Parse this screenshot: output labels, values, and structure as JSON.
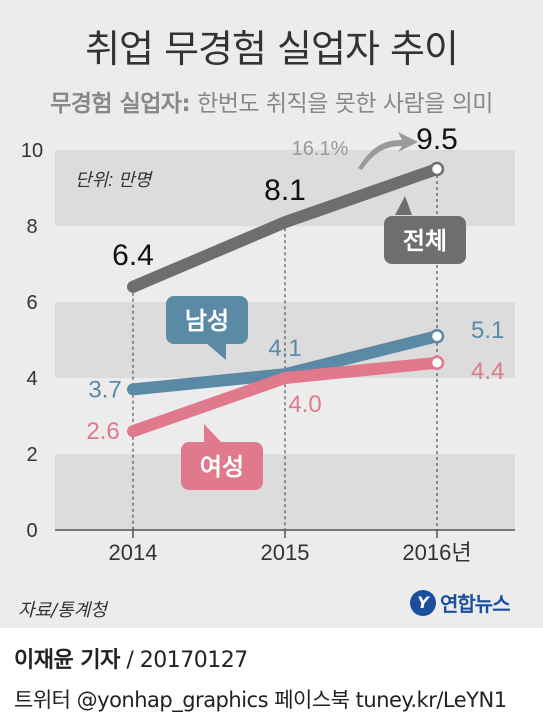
{
  "header": {
    "title": "취업 무경험 실업자 추이",
    "subtitle_bold": "무경험 실업자:",
    "subtitle_rest": " 한번도 취직을 못한 사람을 의미"
  },
  "footer": {
    "source": "자료/통계청",
    "logo": "연합뉴스",
    "logo_mark": "Y",
    "reporter": "이재윤 기자",
    "date": " / 20170127",
    "social": "트위터 @yonhap_graphics  페이스북 tuney.kr/LeYN1"
  },
  "colors": {
    "total": "#6e6e6e",
    "male": "#5a8aa6",
    "female": "#e0798c",
    "panel": "#ececec",
    "band": "#dcdcdc"
  },
  "chart_data": {
    "type": "line",
    "categories": [
      "2014",
      "2015",
      "2016년"
    ],
    "ylim": [
      0,
      10
    ],
    "yticks": [
      "0",
      "2",
      "4",
      "6",
      "8",
      "10"
    ],
    "unit_label": "단위: 만명",
    "series": [
      {
        "name": "전체",
        "values": [
          6.4,
          8.1,
          9.5
        ],
        "labels": [
          "6.4",
          "8.1",
          "9.5"
        ]
      },
      {
        "name": "남성",
        "values": [
          3.7,
          4.1,
          5.1
        ],
        "labels": [
          "3.7",
          "4.1",
          "5.1"
        ]
      },
      {
        "name": "여성",
        "values": [
          2.6,
          4.0,
          4.4
        ],
        "labels": [
          "2.6",
          "4.0",
          "4.4"
        ]
      }
    ],
    "annotation": "16.1%"
  }
}
